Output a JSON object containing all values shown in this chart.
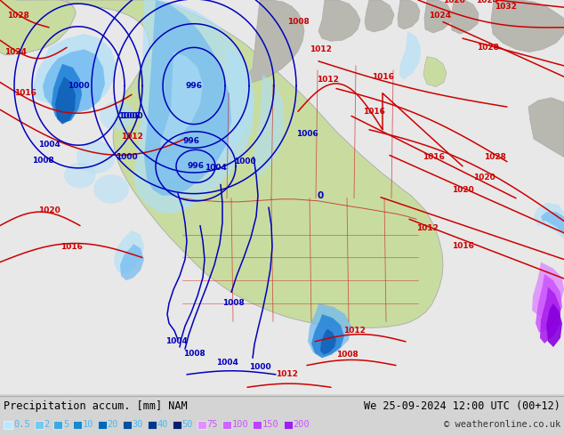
{
  "title_left": "Precipitation accum. [mm] NAM",
  "title_right": "We 25-09-2024 12:00 UTC (00+12)",
  "copyright": "© weatheronline.co.uk",
  "legend_values": [
    "0.5",
    "2",
    "5",
    "10",
    "20",
    "30",
    "40",
    "50",
    "75",
    "100",
    "150",
    "200"
  ],
  "legend_swatch_colors": [
    "#b8e8ff",
    "#78c8f0",
    "#40a8e0",
    "#1888d0",
    "#0068b8",
    "#0050a0",
    "#003888",
    "#002070",
    "#e090ff",
    "#cc66ff",
    "#bb44ff",
    "#9922ee"
  ],
  "legend_text_colors": [
    "#50b8f0",
    "#50b8f0",
    "#50b8f0",
    "#50b8f0",
    "#50b8f0",
    "#50b8f0",
    "#50b8f0",
    "#50b8f0",
    "#cc55ff",
    "#cc55ff",
    "#cc55ff",
    "#cc55ff"
  ],
  "bg_ocean": "#e8e8e8",
  "bg_land": "#c8dca0",
  "bg_gray_land": "#b8b8b0",
  "precip_light": "#b0dff8",
  "precip_mid": "#70baf0",
  "precip_dark": "#2080d8",
  "precip_darkest": "#1060b8",
  "isobar_blue": "#0000bb",
  "isobar_red": "#cc0000",
  "border_color": "#cc2222",
  "coast_color": "#999988",
  "fig_bg": "#d4d4d4",
  "label_fontsize": 6.5,
  "fig_width": 6.34,
  "fig_height": 4.9,
  "dpi": 100
}
